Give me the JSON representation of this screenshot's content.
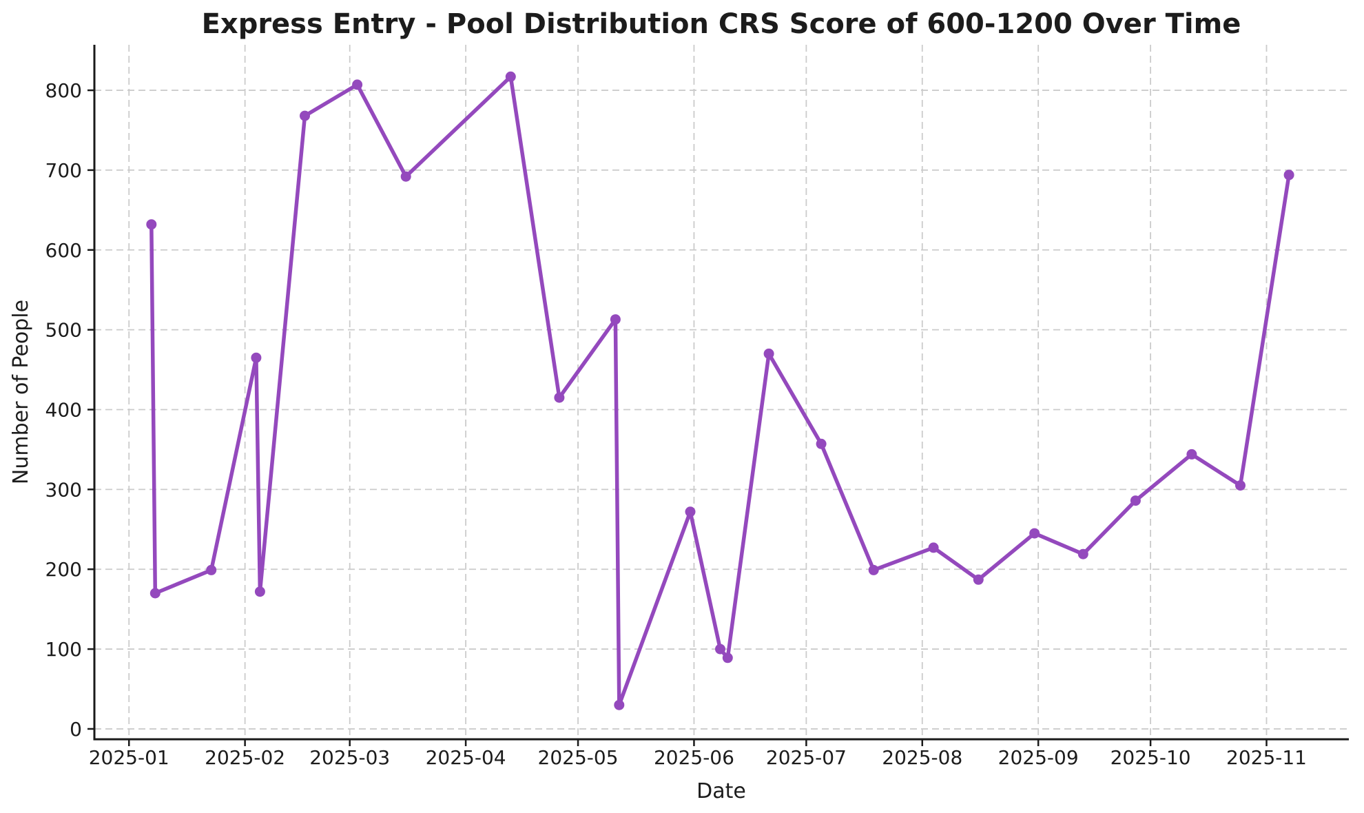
{
  "chart_data": {
    "type": "line",
    "title": "Express Entry - Pool Distribution CRS Score of 600-1200 Over Time",
    "xlabel": "Date",
    "ylabel": "Number of People",
    "line_color": "#9449bd",
    "marker": "circle",
    "grid": "dashed",
    "legend": "none",
    "y_ticks": [
      0,
      100,
      200,
      300,
      400,
      500,
      600,
      700,
      800
    ],
    "x_ticks": [
      "2025-01",
      "2025-02",
      "2025-03",
      "2025-04",
      "2025-05",
      "2025-06",
      "2025-07",
      "2025-08",
      "2025-09",
      "2025-10",
      "2025-11"
    ],
    "ylim": [
      -13,
      857
    ],
    "xlim_days_from_2025_01_01": [
      -9.25,
      326
    ],
    "points": [
      {
        "date": "2025-01-07",
        "value": 632
      },
      {
        "date": "2025-01-08",
        "value": 170
      },
      {
        "date": "2025-01-23",
        "value": 199
      },
      {
        "date": "2025-02-04",
        "value": 465
      },
      {
        "date": "2025-02-05",
        "value": 172
      },
      {
        "date": "2025-02-17",
        "value": 768
      },
      {
        "date": "2025-03-03",
        "value": 807
      },
      {
        "date": "2025-03-16",
        "value": 692
      },
      {
        "date": "2025-04-13",
        "value": 817
      },
      {
        "date": "2025-04-26",
        "value": 415
      },
      {
        "date": "2025-05-11",
        "value": 513
      },
      {
        "date": "2025-05-12",
        "value": 30
      },
      {
        "date": "2025-05-31",
        "value": 272
      },
      {
        "date": "2025-06-08",
        "value": 100
      },
      {
        "date": "2025-06-10",
        "value": 89
      },
      {
        "date": "2025-06-21",
        "value": 470
      },
      {
        "date": "2025-07-05",
        "value": 357
      },
      {
        "date": "2025-07-19",
        "value": 199
      },
      {
        "date": "2025-08-04",
        "value": 227
      },
      {
        "date": "2025-08-16",
        "value": 187
      },
      {
        "date": "2025-08-31",
        "value": 245
      },
      {
        "date": "2025-09-13",
        "value": 219
      },
      {
        "date": "2025-09-27",
        "value": 286
      },
      {
        "date": "2025-10-12",
        "value": 344
      },
      {
        "date": "2025-10-25",
        "value": 305
      },
      {
        "date": "2025-11-07",
        "value": 694
      }
    ]
  }
}
